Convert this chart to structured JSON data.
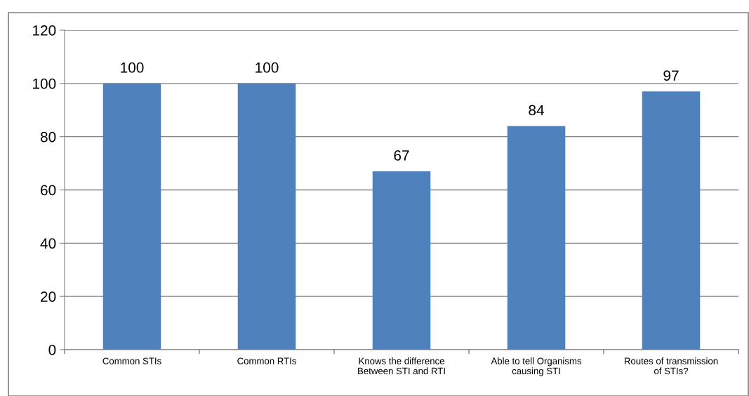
{
  "chart_data": {
    "type": "bar",
    "categories": [
      "Common STIs",
      "Common RTIs",
      "Knows the difference\nBetween STI and RTI",
      "Able to tell Organisms\ncausing STI",
      "Routes of transmission\nof STIs?"
    ],
    "values": [
      100,
      100,
      67,
      84,
      97
    ],
    "color": "#4f81bd",
    "ylim": [
      0,
      120
    ],
    "yticks": [
      0,
      20,
      40,
      60,
      80,
      100,
      120
    ],
    "grid": "y",
    "data_labels": true
  }
}
